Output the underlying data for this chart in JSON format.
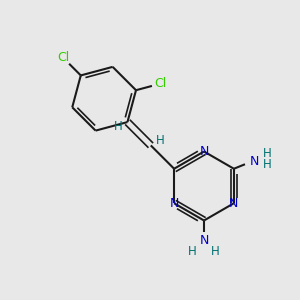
{
  "background_color": "#e8e8e8",
  "bond_color": "#1a1a1a",
  "N_color": "#0000cc",
  "Cl_color": "#33cc00",
  "H_color": "#007070",
  "figsize": [
    3.0,
    3.0
  ],
  "dpi": 100,
  "xlim": [
    0,
    10
  ],
  "ylim": [
    0,
    10
  ]
}
